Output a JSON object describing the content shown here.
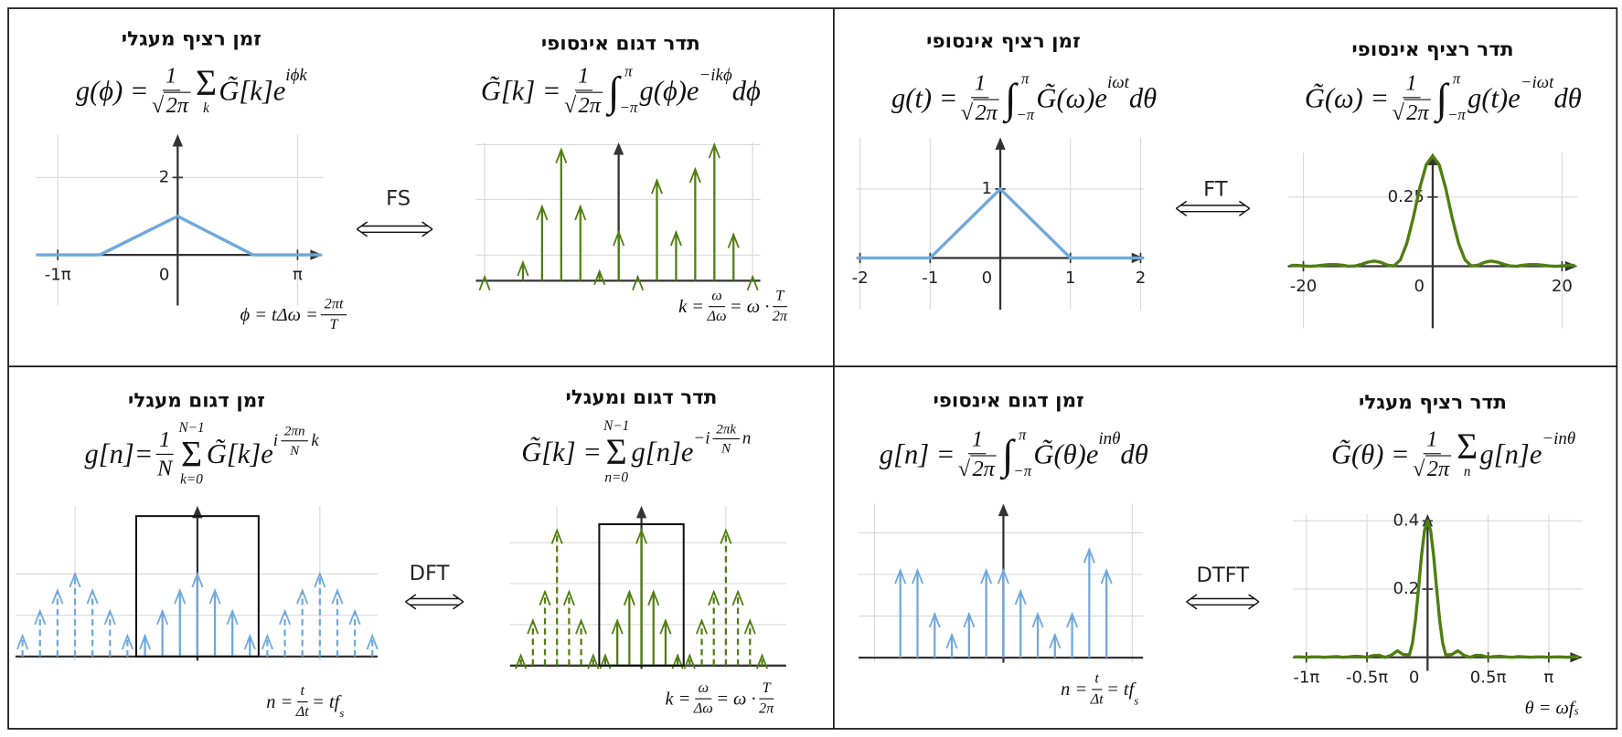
{
  "panels": [
    {
      "title": "זמן רציף מעגלי",
      "formula": [
        "g(ϕ) = ",
        {
          "frac": [
            [
              "1"
            ],
            [
              {
                "root": "√",
                "arg": "2π"
              }
            ]
          ]
        },
        {
          "op": "Σ",
          "under": "k"
        },
        "G̃[k]e",
        {
          "sup": [
            "iϕk"
          ]
        }
      ],
      "note": [
        "ϕ = tΔω = ",
        {
          "frac": [
            [
              "2πt"
            ],
            [
              "T"
            ]
          ]
        }
      ],
      "plot": {
        "type": "line",
        "color": "#6fa8dc",
        "xlim": [
          -1.18,
          1.21
        ],
        "ylim": [
          -1.31,
          3.12
        ],
        "xticks": [
          {
            "value": -1,
            "label": "-1π"
          },
          0,
          {
            "value": 1,
            "label": "π"
          }
        ],
        "yticks": [
          2
        ],
        "x": [
          -1.18,
          -0.65,
          0,
          0.63,
          1.2
        ],
        "values": [
          0,
          0,
          1,
          0,
          0
        ]
      }
    },
    {
      "title": "תדר דגום אינסופי",
      "formula": [
        "G̃[k]  = ",
        {
          "frac": [
            [
              "1"
            ],
            [
              {
                "root": "√",
                "arg": "2π"
              }
            ]
          ]
        },
        {
          "op": "∫",
          "sub": "−π",
          "sup": "π"
        },
        "g(ϕ)e",
        {
          "sup": [
            "−ikϕ"
          ]
        },
        "dϕ"
      ],
      "note": [
        "k = ",
        {
          "frac": [
            [
              "ω"
            ],
            [
              "Δω"
            ]
          ]
        },
        " = ω · ",
        {
          "frac": [
            [
              "T"
            ],
            [
              "2π"
            ]
          ]
        }
      ],
      "plot": {
        "type": "stem",
        "color": "#4f7f10",
        "xlim": [
          -7.46,
          7.4
        ],
        "ylim": [
          0,
          2.48
        ],
        "grid_x": [
          -7,
          7
        ],
        "grid_y": [
          0.46,
          1.46,
          2.44
        ],
        "series": [
          {
            "style": "solid",
            "x": [
              -7,
              -6,
              -5,
              -4,
              -3,
              -2,
              -1,
              0,
              1,
              2,
              3,
              4,
              5,
              6,
              7
            ],
            "values": [
              0.07,
              null,
              0.33,
              1.33,
              2.35,
              1.33,
              0.17,
              0.87,
              0.07,
              1.8,
              0.87,
              2.0,
              2.44,
              0.83,
              0.07
            ]
          }
        ]
      }
    },
    {
      "title": "זמן רציף אינסופי",
      "formula": [
        "g(t) = ",
        {
          "frac": [
            [
              "1"
            ],
            [
              {
                "root": "√",
                "arg": "2π"
              }
            ]
          ]
        },
        {
          "op": "∫",
          "sub": "−π",
          "sup": "π"
        },
        "G̃(ω)e",
        {
          "sup": [
            "iωt"
          ]
        },
        "dθ"
      ],
      "plot": {
        "type": "line",
        "color": "#6fa8dc",
        "xlim": [
          -2.05,
          2.05
        ],
        "ylim": [
          -0.75,
          1.75
        ],
        "xticks": [
          -2,
          -1,
          0,
          1,
          2
        ],
        "yticks": [
          1
        ],
        "x": [
          -2.05,
          -1,
          0,
          1,
          2.05
        ],
        "values": [
          0,
          0,
          1,
          0,
          0
        ]
      }
    },
    {
      "title": "תדר רציף אינסופי",
      "formula": [
        "G̃(ω) = ",
        {
          "frac": [
            [
              "1"
            ],
            [
              {
                "root": "√",
                "arg": "2π"
              }
            ]
          ]
        },
        {
          "op": "∫",
          "sub": "−π",
          "sup": "π"
        },
        "g(t)e",
        {
          "sup": [
            "−iωt"
          ]
        },
        "dθ"
      ],
      "plot": {
        "type": "line",
        "color": "#4f7f10",
        "xlim": [
          -22.4,
          22.4
        ],
        "ylim": [
          -0.224,
          0.41
        ],
        "xticks": [
          -20,
          0,
          20
        ],
        "yticks": [
          0.25
        ],
        "x": [
          -22,
          -21,
          -20,
          -19,
          -18,
          -17,
          -16,
          -15,
          -14,
          -13,
          -12,
          -11,
          -10,
          -9,
          -8,
          -7,
          -6,
          -5,
          -4,
          -3,
          -2,
          -1,
          0,
          1,
          2,
          3,
          4,
          5,
          6,
          7,
          8,
          9,
          10,
          11,
          12,
          13,
          14,
          15,
          16,
          17,
          18,
          19,
          20,
          21,
          22
        ],
        "values": [
          0.003,
          0.003,
          0.001,
          0,
          0.001,
          0.004,
          0.006,
          0.006,
          0.004,
          0,
          0.001,
          0.007,
          0.015,
          0.019,
          0.014,
          0.004,
          0.001,
          0.023,
          0.083,
          0.176,
          0.283,
          0.367,
          0.399,
          0.367,
          0.283,
          0.176,
          0.083,
          0.023,
          0.001,
          0.004,
          0.014,
          0.019,
          0.015,
          0.007,
          0.001,
          0,
          0.004,
          0.006,
          0.006,
          0.004,
          0.001,
          0,
          0.001,
          0.003,
          0.003
        ]
      }
    },
    {
      "title": "זמן דגום מעגלי",
      "formula": [
        "g[n]= ",
        {
          "frac": [
            [
              "1"
            ],
            [
              "N"
            ]
          ]
        },
        {
          "op": "Σ",
          "under": "k=0",
          "over": "N−1"
        },
        "G̃[k]e",
        {
          "sup": [
            "i",
            {
              "frac": [
                [
                  "2πn"
                ],
                [
                  "N"
                ]
              ]
            },
            "k"
          ]
        }
      ],
      "note": [
        "n = ",
        {
          "frac": [
            [
              "t"
            ],
            [
              "Δt"
            ]
          ]
        },
        " = tf",
        {
          "sub": [
            "s"
          ]
        }
      ],
      "plot": {
        "type": "stem",
        "color": "#6fa8dc",
        "xlim": [
          -10.4,
          10.3
        ],
        "ylim": [
          -0.1,
          3.65
        ],
        "grid_x": [
          -7,
          7
        ],
        "grid_y": [
          1,
          2
        ],
        "window": {
          "x": [
            -3.5,
            3.5
          ],
          "y": [
            0,
            3.4
          ]
        },
        "series": [
          {
            "style": "dashed",
            "x": [
              -10,
              -9,
              -8,
              -7,
              -6,
              -5,
              -4,
              4,
              5,
              6,
              7,
              8,
              9,
              10
            ],
            "values": [
              0.5,
              1.1,
              1.6,
              2,
              1.6,
              1.1,
              0.5,
              0.5,
              1.1,
              1.6,
              2,
              1.6,
              1.1,
              0.5
            ]
          },
          {
            "style": "solid",
            "x": [
              -3,
              -2,
              -1,
              0,
              1,
              2,
              3
            ],
            "values": [
              0.5,
              1.1,
              1.6,
              2,
              1.6,
              1.1,
              0.5
            ]
          }
        ]
      }
    },
    {
      "title": "תדר דגום ומעגלי",
      "formula": [
        "G̃[k] = ",
        {
          "op": "Σ",
          "under": "n=0",
          "over": "N−1"
        },
        "g[n]e",
        {
          "sup": [
            "−i",
            {
              "frac": [
                [
                  "2πk"
                ],
                [
                  "N"
                ]
              ]
            },
            "n"
          ]
        }
      ],
      "note": [
        "k = ",
        {
          "frac": [
            [
              "ω"
            ],
            [
              "Δω"
            ]
          ]
        },
        " = ω · ",
        {
          "frac": [
            [
              "T"
            ],
            [
              "2π"
            ]
          ]
        }
      ],
      "plot": {
        "type": "stem",
        "color": "#4f7f10",
        "xlim": [
          -10.9,
          12
        ],
        "ylim": [
          -0.08,
          3.9
        ],
        "grid_x": [
          -7,
          7
        ],
        "grid_y": [
          1,
          2,
          3
        ],
        "window": {
          "x": [
            -3.5,
            3.5
          ],
          "y": [
            0,
            3.45
          ]
        },
        "series": [
          {
            "style": "dashed",
            "x": [
              -10,
              -9,
              -8,
              -7,
              -6,
              -5,
              -4,
              4,
              5,
              6,
              7,
              8,
              9,
              10
            ],
            "values": [
              0.25,
              1.1,
              1.8,
              3.3,
              1.8,
              1.1,
              0.25,
              0.25,
              1.1,
              1.8,
              3.3,
              1.8,
              1.1,
              0.25
            ]
          },
          {
            "style": "solid",
            "x": [
              -3,
              -2,
              -1,
              0,
              1,
              2,
              3
            ],
            "values": [
              0.25,
              1.1,
              1.8,
              3.3,
              1.8,
              1.1,
              0.25
            ]
          }
        ]
      }
    },
    {
      "title": "זמן דגום אינסופי",
      "formula": [
        "g[n] = ",
        {
          "frac": [
            [
              "1"
            ],
            [
              {
                "root": "√",
                "arg": "2π"
              }
            ]
          ]
        },
        {
          "op": "∫",
          "sub": "−π",
          "sup": "π"
        },
        "G̃(θ)e",
        {
          "sup": [
            "inθ"
          ]
        },
        "dθ"
      ],
      "note": [
        "n = ",
        {
          "frac": [
            [
              "t"
            ],
            [
              "Δt"
            ]
          ]
        },
        " = tf",
        {
          "sub": [
            "s"
          ]
        }
      ],
      "plot": {
        "type": "stem",
        "color": "#6fa8dc",
        "xlim": [
          -8.43,
          8.13
        ],
        "ylim": [
          -0.12,
          3.7
        ],
        "grid_x": [
          -7.5,
          7.5
        ],
        "grid_y": [
          1,
          2,
          3
        ],
        "series": [
          {
            "style": "solid",
            "x": [
              -6,
              -5,
              -4,
              -3,
              -2,
              -1,
              0,
              1,
              2,
              3,
              4,
              5,
              6
            ],
            "values": [
              2.1,
              2.1,
              1.05,
              0.55,
              1.05,
              2.1,
              2.1,
              1.6,
              1.05,
              0.55,
              1.05,
              2.6,
              2.1
            ]
          }
        ]
      }
    },
    {
      "title": "תדר רציף מעגלי",
      "formula": [
        "G̃(θ) = ",
        {
          "frac": [
            [
              "1"
            ],
            [
              {
                "root": "√",
                "arg": "2π"
              }
            ]
          ]
        },
        {
          "op": "Σ",
          "under": "n"
        },
        "g[n]e",
        {
          "sup": [
            "−inθ"
          ]
        }
      ],
      "note": [
        "θ = ωf",
        {
          "sub": [
            "s"
          ]
        }
      ],
      "plot": {
        "type": "line",
        "color": "#4f7f10",
        "xlim": [
          -1.11,
          1.28
        ],
        "ylim": [
          -0.04,
          0.42
        ],
        "xticks": [
          {
            "value": -1,
            "label": "-1π"
          },
          {
            "value": -0.5,
            "label": "-0.5π"
          },
          0,
          {
            "value": 0.5,
            "label": "0.5π"
          },
          {
            "value": 1,
            "label": "π"
          }
        ],
        "yticks": [
          0.2,
          0.4
        ],
        "x": [
          -1.1,
          -1.05,
          -1.0,
          -0.95,
          -0.9,
          -0.85,
          -0.8,
          -0.75,
          -0.7,
          -0.65,
          -0.6,
          -0.55,
          -0.5,
          -0.45,
          -0.4,
          -0.35,
          -0.3,
          -0.25,
          -0.2,
          -0.15,
          -0.125,
          -0.1,
          -0.075,
          -0.05,
          -0.025,
          0,
          0.025,
          0.05,
          0.075,
          0.1,
          0.125,
          0.15,
          0.2,
          0.25,
          0.3,
          0.35,
          0.4,
          0.45,
          0.5,
          0.55,
          0.6,
          0.65,
          0.7,
          0.75,
          0.8,
          0.85,
          0.9,
          0.95,
          1.0,
          1.05,
          1.1,
          1.15,
          1.2,
          1.25
        ],
        "values": [
          0.001,
          0.001,
          0,
          0.001,
          0.001,
          0,
          0.001,
          0.002,
          0,
          0.001,
          0.003,
          0.002,
          0,
          0.005,
          0.006,
          0,
          0.006,
          0.019,
          0.008,
          0.007,
          0.041,
          0.108,
          0.201,
          0.298,
          0.372,
          0.4,
          0.372,
          0.298,
          0.201,
          0.108,
          0.041,
          0.007,
          0.008,
          0.019,
          0.006,
          0,
          0.006,
          0.005,
          0,
          0.002,
          0.003,
          0.001,
          0,
          0.002,
          0.001,
          0,
          0.001,
          0.001,
          0,
          0.001,
          0.001,
          0,
          0.001,
          0.001
        ]
      }
    }
  ],
  "transforms": [
    "FS",
    "FT",
    "DFT",
    "DTFT"
  ]
}
